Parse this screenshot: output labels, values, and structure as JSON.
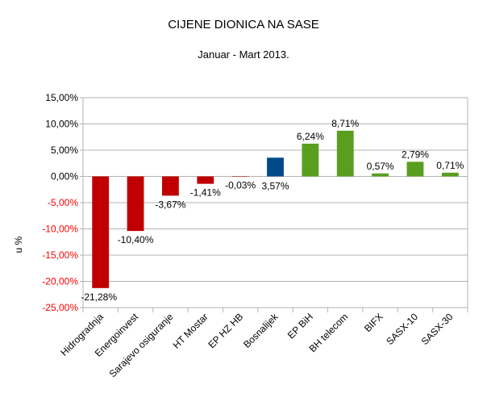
{
  "chart_data": {
    "type": "bar",
    "title": "CIJENE DIONICA NA SASE",
    "subtitle": "Januar - Mart 2013.",
    "xlabel": "",
    "ylabel": "u %",
    "ylim": [
      -25,
      15
    ],
    "y_ticks": [
      15,
      10,
      5,
      0,
      -5,
      -10,
      -15,
      -20,
      -25
    ],
    "y_tick_labels": [
      "15,00%",
      "10,00%",
      "5,00%",
      "0,00%",
      "-5,00%",
      "-10,00%",
      "-15,00%",
      "-20,00%",
      "-25,00%"
    ],
    "grid": true,
    "legend": false,
    "categories": [
      "Hidrogradnja",
      "Energoinvest",
      "Sarajevo osiguranje",
      "HT Mostar",
      "EP HZ HB",
      "Bosnalijek",
      "EP BiH",
      "BH telecom",
      "BIFX",
      "SASX-10",
      "SASX-30"
    ],
    "category_labels": [
      "Hidrogradnja",
      "Energoinvest",
      "Sarajevo osiguranje",
      "HT Mostar",
      "EP HZ HB",
      "Bosnalijek",
      "EP BiH",
      "BH telecom",
      "BIFX",
      "SASX-10",
      "SASX-30"
    ],
    "values": [
      -21.28,
      -10.4,
      -3.67,
      -1.41,
      -0.03,
      3.57,
      6.24,
      8.71,
      0.57,
      2.79,
      0.71
    ],
    "value_labels": [
      "-21,28%",
      "-10,40%",
      "-3,67%",
      "-1,41%",
      "-0,03%",
      "3,57%",
      "6,24%",
      "8,71%",
      "0,57%",
      "2,79%",
      "0,71%"
    ],
    "bar_colors": [
      "#c00000",
      "#c00000",
      "#c00000",
      "#c00000",
      "#c00000",
      "#004a8c",
      "#5a9e20",
      "#5a9e20",
      "#5a9e20",
      "#5a9e20",
      "#5a9e20"
    ],
    "colors": {
      "negative_tick": "#ff0000",
      "positive_tick": "#000000",
      "grid": "#b3b3b3",
      "axis": "#b3b3b3"
    }
  }
}
